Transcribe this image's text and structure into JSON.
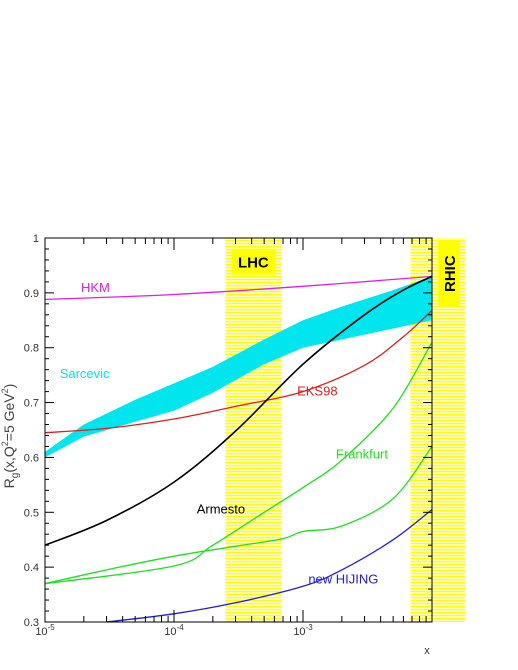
{
  "chart_data": {
    "type": "line",
    "x_scale": "log",
    "xlim": [
      1e-05,
      0.01
    ],
    "ylim": [
      0.3,
      1.0
    ],
    "xlabel": "x",
    "ylabel": "R_g(x,Q^2=5 GeV^2)",
    "ylabel_main": "R",
    "ylabel_sub": "g",
    "ylabel_args": "(x,Q",
    "ylabel_sup1": "2",
    "ylabel_eq": "=5 GeV",
    "ylabel_sup2": "2",
    "ylabel_close": ")",
    "x_ticks": [
      {
        "value": 1e-05,
        "base": "10",
        "exp": "-5"
      },
      {
        "value": 0.0001,
        "base": "10",
        "exp": "-4"
      },
      {
        "value": 0.001,
        "base": "10",
        "exp": "-3"
      }
    ],
    "y_ticks": [
      {
        "value": 0.3,
        "label": "0.3"
      },
      {
        "value": 0.4,
        "label": "0.4"
      },
      {
        "value": 0.5,
        "label": "0.5"
      },
      {
        "value": 0.6,
        "label": "0.6"
      },
      {
        "value": 0.7,
        "label": "0.7"
      },
      {
        "value": 0.8,
        "label": "0.8"
      },
      {
        "value": 0.9,
        "label": "0.9"
      },
      {
        "value": 1.0,
        "label": "1"
      }
    ],
    "regions": [
      {
        "name": "LHC",
        "label": "LHC",
        "x_range": [
          0.00025,
          0.00068
        ],
        "color": "#ffff00",
        "label_y": 0.955
      },
      {
        "name": "RHIC",
        "label": "RHIC",
        "x_range": [
          0.0068,
          0.018
        ],
        "color": "#ffff00",
        "label_y": 0.935
      }
    ],
    "band": {
      "name": "Sarcevic",
      "label": "Sarcevic",
      "color": "#00e5ee",
      "label_pos": [
        1.3e-05,
        0.745
      ],
      "x": [
        1e-05,
        2e-05,
        5e-05,
        0.0001,
        0.0002,
        0.0005,
        0.001,
        0.002,
        0.005,
        0.01
      ],
      "upper": [
        0.61,
        0.66,
        0.705,
        0.735,
        0.765,
        0.815,
        0.85,
        0.875,
        0.905,
        0.93
      ],
      "lower": [
        0.6,
        0.638,
        0.665,
        0.685,
        0.718,
        0.77,
        0.8,
        0.815,
        0.835,
        0.85
      ]
    },
    "series": [
      {
        "name": "HKM",
        "label": "HKM",
        "color": "#e020e0",
        "label_pos": [
          1.9e-05,
          0.902
        ],
        "x": [
          1e-05,
          0.0001,
          0.001,
          0.01
        ],
        "y": [
          0.888,
          0.897,
          0.912,
          0.93
        ]
      },
      {
        "name": "EKS98",
        "label": "EKS98",
        "color": "#e02020",
        "label_pos": [
          0.0009,
          0.713
        ],
        "x": [
          1e-05,
          3e-05,
          0.0001,
          0.0003,
          0.001,
          0.003,
          0.006,
          0.01
        ],
        "y": [
          0.645,
          0.653,
          0.67,
          0.693,
          0.72,
          0.768,
          0.82,
          0.868
        ]
      },
      {
        "name": "Armesto",
        "label": "Armesto",
        "color": "#000000",
        "label_pos": [
          0.00015,
          0.498
        ],
        "x": [
          1e-05,
          3e-05,
          0.0001,
          0.0003,
          0.001,
          0.003,
          0.006,
          0.01
        ],
        "y": [
          0.44,
          0.485,
          0.555,
          0.648,
          0.77,
          0.86,
          0.905,
          0.93
        ]
      },
      {
        "name": "Frankfurt",
        "label": "Frankfurt",
        "color": "#20e020",
        "label_pos": [
          0.0018,
          0.598
        ],
        "x": [
          1e-05,
          0.0001,
          0.0002,
          0.0005,
          0.001,
          0.002,
          0.005,
          0.01
        ],
        "y": [
          0.37,
          0.402,
          0.44,
          0.5,
          0.545,
          0.595,
          0.69,
          0.81
        ]
      },
      {
        "name": "Frankfurt (lower)",
        "color": "#20e020",
        "x": [
          1e-05,
          3e-05,
          0.0001,
          0.0003,
          0.0007,
          0.001,
          0.002,
          0.005,
          0.01
        ],
        "y": [
          0.37,
          0.395,
          0.42,
          0.438,
          0.452,
          0.465,
          0.475,
          0.525,
          0.62
        ]
      },
      {
        "name": "new HIJING",
        "label": "new HIJING",
        "color": "#2020d0",
        "label_pos": [
          0.0011,
          0.37
        ],
        "x": [
          3e-05,
          0.0001,
          0.0003,
          0.001,
          0.002,
          0.005,
          0.01
        ],
        "y": [
          0.3,
          0.315,
          0.335,
          0.365,
          0.395,
          0.45,
          0.505
        ]
      }
    ]
  }
}
